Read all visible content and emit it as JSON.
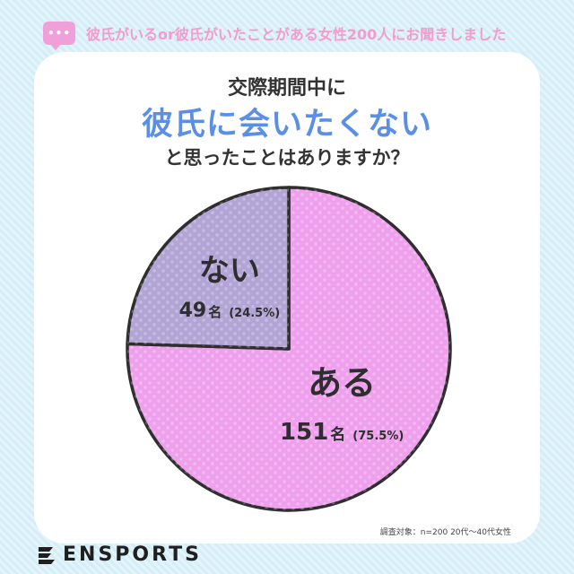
{
  "header": {
    "text": "彼氏がいるor彼氏がいたことがある女性200人にお聞きしました",
    "bubble_dots": "•••"
  },
  "title": {
    "line1": "交際期間中に",
    "line2": "彼氏に会いたくない",
    "line3": "と思ったことはありますか？"
  },
  "chart_data": {
    "type": "pie",
    "title": "交際期間中に 彼氏に会いたくない と思ったことはありますか？",
    "start_angle_deg": 0,
    "slices": [
      {
        "label": "ある",
        "count": 151,
        "unit": "名",
        "percent": "(75.5%)",
        "value": 75.5,
        "color": "#eea0ec"
      },
      {
        "label": "ない",
        "count": 49,
        "unit": "名",
        "percent": "(24.5%)",
        "value": 24.5,
        "color": "#b3a4d6"
      }
    ]
  },
  "footnote": "調査対象：n=200 20代〜40代女性",
  "logo": {
    "text": "ENSPORTS"
  }
}
